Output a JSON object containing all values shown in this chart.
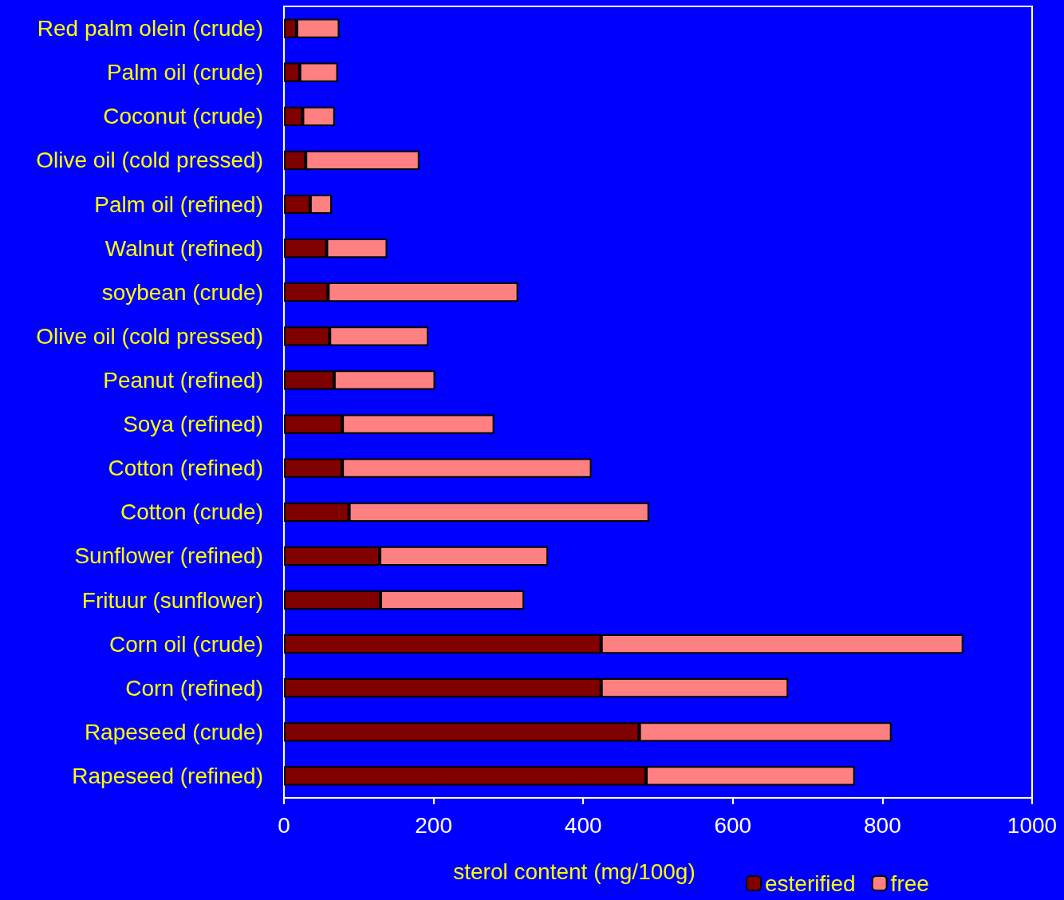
{
  "chart_data": {
    "type": "bar",
    "orientation": "horizontal",
    "stacked": true,
    "xlabel": "sterol content (mg/100g)",
    "categories": [
      "Red palm olein (crude)",
      "Palm oil (crude)",
      "Coconut (crude)",
      "Olive oil (cold pressed)",
      "Palm oil (refined)",
      "Walnut (refined)",
      "soybean (crude)",
      "Olive oil (cold pressed)",
      "Peanut (refined)",
      "Soya (refined)",
      "Cotton (refined)",
      "Cotton (crude)",
      "Sunflower (refined)",
      "Frituur (sunflower)",
      "Corn oil (crude)",
      "Corn (refined)",
      "Rapeseed (crude)",
      "Rapeseed (refined)"
    ],
    "series": [
      {
        "name": "esterified",
        "color": "#800000",
        "values": [
          17,
          21,
          25,
          29,
          35,
          57,
          59,
          61,
          67,
          78,
          78,
          87,
          128,
          129,
          424,
          424,
          475,
          484
        ]
      },
      {
        "name": "free",
        "color": "#ff8080",
        "values": [
          57,
          51,
          43,
          152,
          29,
          81,
          254,
          132,
          135,
          203,
          333,
          401,
          225,
          192,
          484,
          250,
          337,
          279
        ]
      }
    ],
    "xlim": [
      0,
      1000
    ],
    "xticks": [
      0,
      200,
      400,
      600,
      800,
      1000
    ],
    "grid": false,
    "legend": "bottom"
  }
}
